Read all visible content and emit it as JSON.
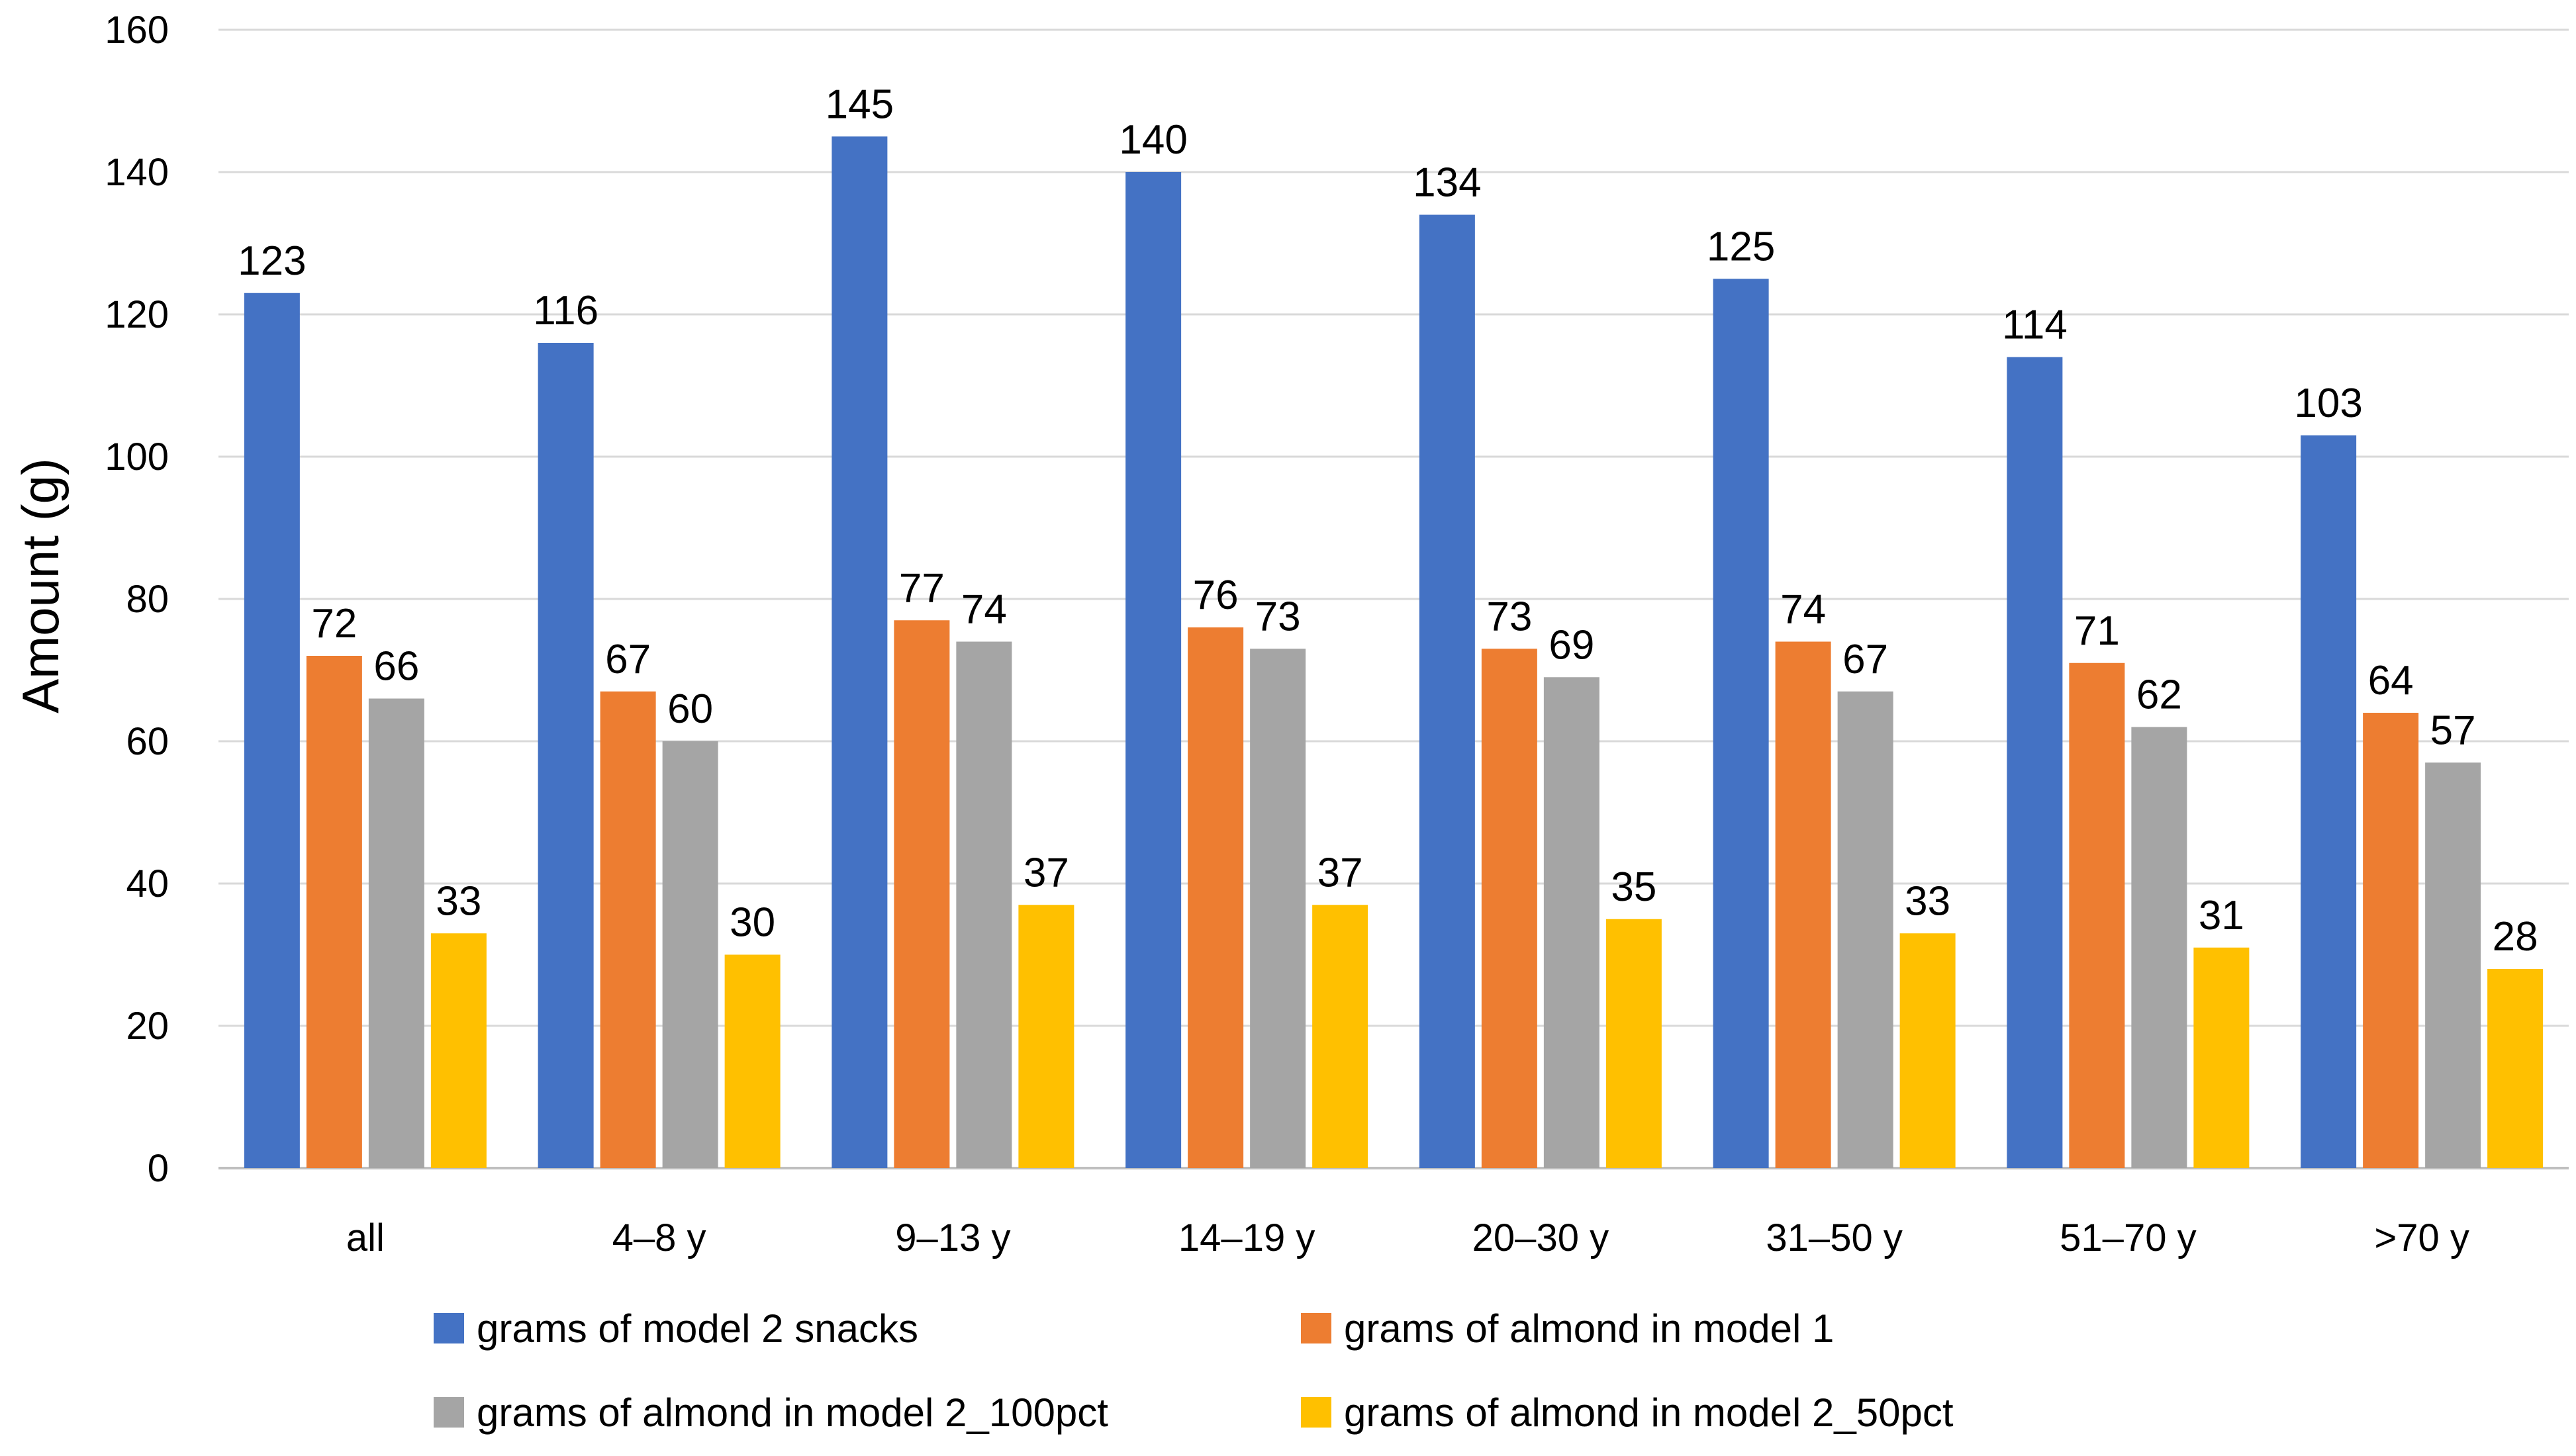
{
  "chart_data": {
    "type": "bar",
    "title": "",
    "xlabel": "",
    "ylabel": "Amount (g)",
    "ylim": [
      0,
      160
    ],
    "yticks": [
      0,
      20,
      40,
      60,
      80,
      100,
      120,
      140,
      160
    ],
    "grid": true,
    "legend_position": "bottom",
    "categories": [
      "all",
      "4–8 y",
      "9–13 y",
      "14–19 y",
      "20–30 y",
      "31–50 y",
      "51–70 y",
      ">70 y"
    ],
    "series": [
      {
        "name": "grams of model 2 snacks",
        "color": "#4472C4",
        "values": [
          123,
          116,
          145,
          140,
          134,
          125,
          114,
          103
        ]
      },
      {
        "name": "grams of almond in model 1",
        "color": "#ED7D31",
        "values": [
          72,
          67,
          77,
          76,
          73,
          74,
          71,
          64
        ]
      },
      {
        "name": "grams of almond in model 2_100pct",
        "color": "#A5A5A5",
        "values": [
          66,
          60,
          74,
          73,
          69,
          67,
          62,
          57
        ]
      },
      {
        "name": "grams of almond in model 2_50pct",
        "color": "#FFC000",
        "values": [
          33,
          30,
          37,
          37,
          35,
          33,
          31,
          28
        ]
      }
    ]
  }
}
